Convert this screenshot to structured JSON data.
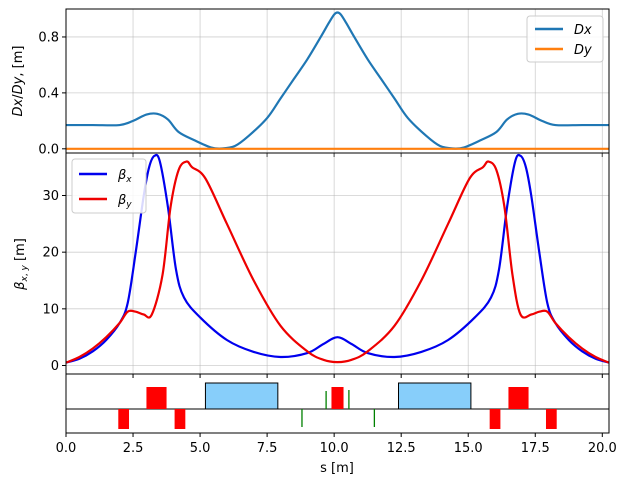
{
  "chart_data": [
    {
      "type": "line",
      "panel": "dispersion",
      "ylabel": "Dx/Dy, [m]",
      "xlim": [
        0.0,
        20.25
      ],
      "ylim": [
        -0.03,
        1.0
      ],
      "yticks": [
        0.0,
        0.4,
        0.8
      ],
      "ytick_labels": [
        "0.0",
        "0.4",
        "0.8"
      ],
      "xticks": [
        0.0,
        2.5,
        5.0,
        7.5,
        10.0,
        12.5,
        15.0,
        17.5,
        20.0
      ],
      "grid": true,
      "legend_position": "upper right",
      "series": [
        {
          "name": "Dx",
          "color": "#1f77b4",
          "x": [
            0.0,
            1.0,
            2.0,
            2.5,
            3.0,
            3.4,
            3.8,
            4.2,
            4.8,
            5.4,
            5.8,
            6.3,
            6.8,
            7.5,
            8.0,
            8.5,
            9.0,
            9.5,
            9.8,
            10.0,
            10.125,
            10.25,
            10.45,
            10.75,
            11.25,
            11.75,
            12.25,
            12.75,
            13.45,
            13.95,
            14.45,
            14.85,
            15.45,
            16.05,
            16.45,
            16.85,
            17.25,
            17.75,
            18.25,
            19.25,
            20.25
          ],
          "y": [
            0.17,
            0.17,
            0.17,
            0.2,
            0.245,
            0.25,
            0.21,
            0.12,
            0.06,
            0.01,
            0.002,
            0.02,
            0.09,
            0.22,
            0.36,
            0.5,
            0.64,
            0.8,
            0.9,
            0.96,
            0.975,
            0.96,
            0.9,
            0.8,
            0.64,
            0.5,
            0.36,
            0.22,
            0.09,
            0.02,
            0.002,
            0.01,
            0.06,
            0.12,
            0.21,
            0.25,
            0.245,
            0.2,
            0.17,
            0.17,
            0.17
          ]
        },
        {
          "name": "Dy",
          "color": "#ff7f0e",
          "x": [
            0.0,
            20.25
          ],
          "y": [
            0.0,
            0.0
          ]
        }
      ]
    },
    {
      "type": "line",
      "panel": "beta",
      "ylabel": "β_x,y [m]",
      "xlim": [
        0.0,
        20.25
      ],
      "ylim": [
        -1.5,
        37.5
      ],
      "yticks": [
        0,
        10,
        20,
        30
      ],
      "ytick_labels": [
        "0",
        "10",
        "20",
        "30"
      ],
      "xticks": [
        0.0,
        2.5,
        5.0,
        7.5,
        10.0,
        12.5,
        15.0,
        17.5,
        20.0
      ],
      "grid": true,
      "legend_position": "upper left",
      "series": [
        {
          "name": "βx",
          "color": "#0000ee",
          "x": [
            0.0,
            0.5,
            1.0,
            1.5,
            2.0,
            2.3,
            2.6,
            2.9,
            3.1,
            3.3,
            3.5,
            3.8,
            4.1,
            4.4,
            5.0,
            6.0,
            7.0,
            8.0,
            9.0,
            9.6,
            10.125,
            10.65,
            11.25,
            12.25,
            13.25,
            14.25,
            15.25,
            15.85,
            16.15,
            16.45,
            16.75,
            16.95,
            17.15,
            17.35,
            17.65,
            17.95,
            18.25,
            18.75,
            19.25,
            19.75,
            20.25
          ],
          "y": [
            0.5,
            1.2,
            2.5,
            4.5,
            7.5,
            11.0,
            20.0,
            30.0,
            35.0,
            37.0,
            36.0,
            28.0,
            17.0,
            12.0,
            8.5,
            4.5,
            2.4,
            1.5,
            2.2,
            3.8,
            5.0,
            3.8,
            2.2,
            1.5,
            2.4,
            4.5,
            8.5,
            12.0,
            17.0,
            28.0,
            36.0,
            37.0,
            35.0,
            30.0,
            20.0,
            11.0,
            7.5,
            4.5,
            2.5,
            1.2,
            0.5
          ]
        },
        {
          "name": "βy",
          "color": "#ee0000",
          "x": [
            0.0,
            0.5,
            1.0,
            1.5,
            2.0,
            2.3,
            2.6,
            2.9,
            3.2,
            3.6,
            3.9,
            4.2,
            4.5,
            4.7,
            5.2,
            6.0,
            7.0,
            8.0,
            9.0,
            9.6,
            10.125,
            10.65,
            11.25,
            12.25,
            13.25,
            14.25,
            15.05,
            15.55,
            15.75,
            16.05,
            16.35,
            16.65,
            16.95,
            17.35,
            17.65,
            17.95,
            18.25,
            18.75,
            19.25,
            19.75,
            20.25
          ],
          "y": [
            0.5,
            1.5,
            3.0,
            5.0,
            7.5,
            9.5,
            9.5,
            9.0,
            9.0,
            16.0,
            28.0,
            34.5,
            36.0,
            35.0,
            33.0,
            25.0,
            15.0,
            7.0,
            2.5,
            1.0,
            0.6,
            1.0,
            2.5,
            7.0,
            15.0,
            25.0,
            33.0,
            35.0,
            36.0,
            34.5,
            28.0,
            16.0,
            9.0,
            9.0,
            9.5,
            9.5,
            7.5,
            5.0,
            3.0,
            1.5,
            0.5
          ]
        }
      ]
    },
    {
      "type": "lattice",
      "panel": "elements",
      "xlabel": "s [m]",
      "xlim": [
        0.0,
        20.25
      ],
      "xticks": [
        0.0,
        2.5,
        5.0,
        7.5,
        10.0,
        12.5,
        15.0,
        17.5,
        20.0
      ],
      "xtick_labels": [
        "0.0",
        "2.5",
        "5.0",
        "7.5",
        "10.0",
        "12.5",
        "15.0",
        "17.5",
        "20.0"
      ],
      "colors": {
        "dipole": "#87cefa",
        "quadrupole": "#ff0000",
        "corrector": "#008000"
      },
      "dipoles": [
        [
          5.2,
          7.9
        ],
        [
          12.4,
          15.1
        ]
      ],
      "quadrupoles": [
        {
          "range": [
            1.95,
            2.35
          ],
          "sign": "defocusing"
        },
        {
          "range": [
            3.0,
            3.75
          ],
          "sign": "focusing"
        },
        {
          "range": [
            4.05,
            4.45
          ],
          "sign": "defocusing"
        },
        {
          "range": [
            9.9,
            10.35
          ],
          "sign": "focusing"
        },
        {
          "range": [
            15.8,
            16.2
          ],
          "sign": "defocusing"
        },
        {
          "range": [
            16.5,
            17.25
          ],
          "sign": "focusing"
        },
        {
          "range": [
            17.9,
            18.3
          ],
          "sign": "defocusing"
        }
      ],
      "correctors": [
        {
          "s": 8.8,
          "sign": "down"
        },
        {
          "s": 9.7,
          "sign": "up"
        },
        {
          "s": 10.55,
          "sign": "both"
        },
        {
          "s": 11.5,
          "sign": "down"
        }
      ]
    }
  ]
}
